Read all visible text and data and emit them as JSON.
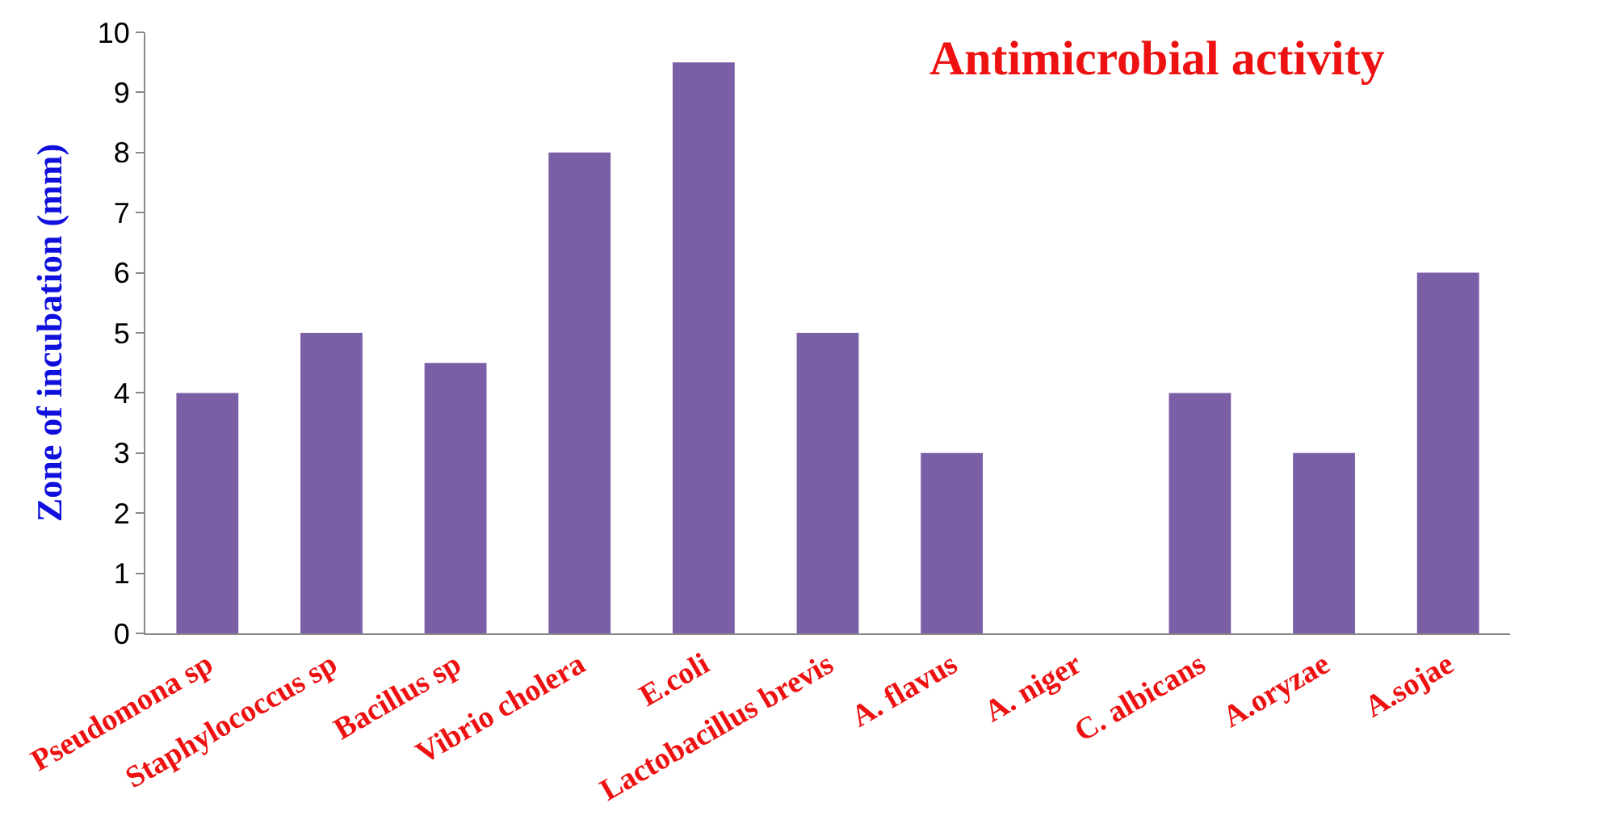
{
  "chart_data": {
    "type": "bar",
    "title": "Antimicrobial activity",
    "ylabel": "Zone of incubation (mm)",
    "categories": [
      "Pseudomona sp",
      "Staphylococcus sp",
      "Bacillus sp",
      "Vibrio cholera",
      "E.coli",
      "Lactobacillus brevis",
      "A. flavus",
      "A. niger",
      "C. albicans",
      "A.oryzae",
      "A.sojae"
    ],
    "values": [
      4,
      5,
      4.5,
      8,
      9.5,
      5,
      3,
      0,
      4,
      3,
      6
    ],
    "color": "#7b5fa6",
    "ylim": [
      0,
      10
    ],
    "yticks": [
      0,
      1,
      2,
      3,
      4,
      5,
      6,
      7,
      8,
      9,
      10
    ]
  }
}
